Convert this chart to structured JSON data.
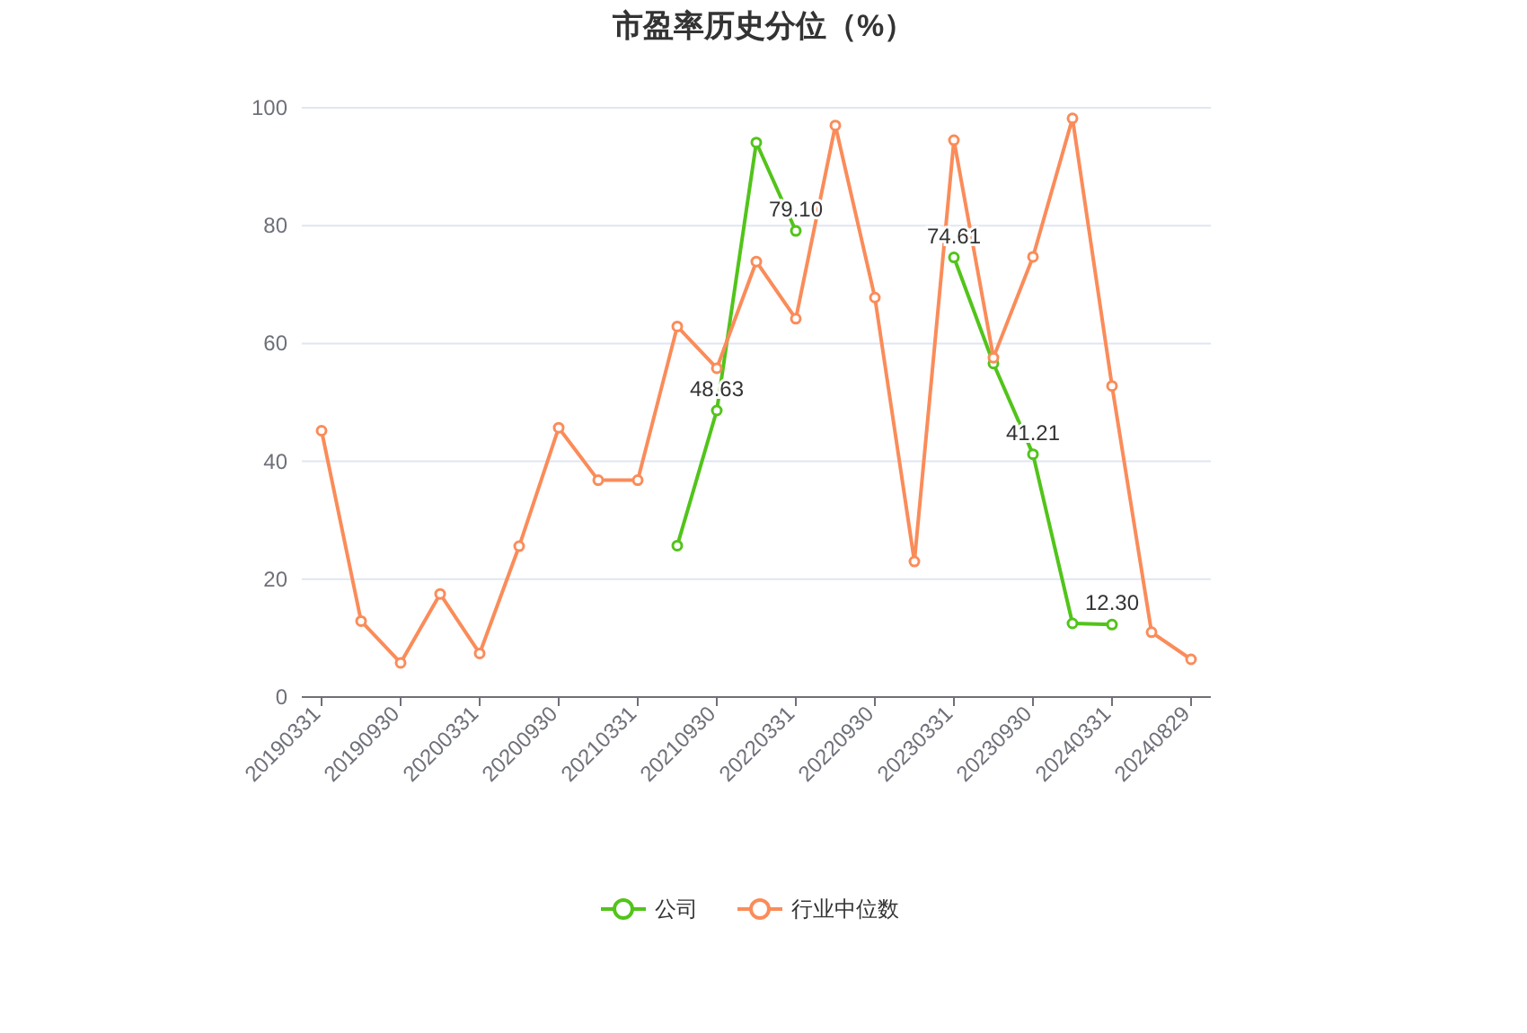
{
  "chart_data": {
    "type": "line",
    "title": "市盈率历史分位（%）",
    "categories": [
      "20190331",
      null,
      "20190930",
      null,
      "20200331",
      null,
      "20200930",
      null,
      "20210331",
      null,
      "20210930",
      null,
      "20220331",
      null,
      "20220930",
      null,
      "20230331",
      null,
      "20230930",
      null,
      "20240331",
      null,
      "20240829"
    ],
    "series": [
      {
        "name": "公司",
        "color": "#52c41a",
        "values": [
          null,
          null,
          null,
          null,
          null,
          null,
          null,
          null,
          null,
          25.7,
          48.63,
          94.1,
          79.1,
          null,
          null,
          null,
          74.61,
          56.6,
          41.21,
          12.5,
          12.3,
          null,
          null
        ],
        "value_labels": [
          null,
          null,
          null,
          null,
          null,
          null,
          null,
          null,
          null,
          null,
          "48.63",
          null,
          "79.10",
          null,
          null,
          null,
          "74.61",
          null,
          "41.21",
          null,
          "12.30",
          null,
          null
        ]
      },
      {
        "name": "行业中位数",
        "color": "#fa8c5a",
        "values": [
          45.2,
          12.9,
          5.8,
          17.5,
          7.4,
          25.6,
          45.7,
          36.8,
          36.8,
          62.9,
          55.8,
          73.9,
          64.2,
          97.0,
          67.8,
          23.0,
          94.5,
          57.6,
          74.7,
          98.2,
          52.8,
          11.0,
          6.4
        ]
      }
    ],
    "ylim": [
      0,
      100
    ],
    "yticks": [
      0,
      20,
      40,
      60,
      80,
      100
    ],
    "grid": "y",
    "legend": "bottom",
    "marker": "circle"
  }
}
